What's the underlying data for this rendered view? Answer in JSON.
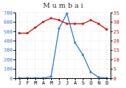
{
  "chart_data": {
    "type": "line",
    "title": "M u m b a i",
    "categories": [
      "J",
      "F",
      "M",
      "A",
      "M",
      "J",
      "J",
      "A",
      "S",
      "O",
      "N",
      "D"
    ],
    "series": [
      {
        "color": "#4488cc",
        "marker": "circle",
        "values": [
          2,
          1,
          2,
          1,
          18,
          530,
          690,
          380,
          250,
          65,
          10,
          2
        ]
      },
      {
        "color": "#cc2222",
        "marker": "circle",
        "axis": "y2",
        "values": [
          24,
          24,
          27,
          30,
          32,
          31,
          29,
          29,
          29,
          31,
          29,
          26
        ]
      }
    ],
    "ylim": [
      0,
      700
    ],
    "yticks": [
      0,
      100,
      200,
      300,
      400,
      500,
      600,
      700
    ],
    "y2lim": [
      0,
      35
    ],
    "y2ticks": [
      0,
      5,
      10,
      15,
      20,
      25,
      30,
      35
    ],
    "grid": true
  }
}
